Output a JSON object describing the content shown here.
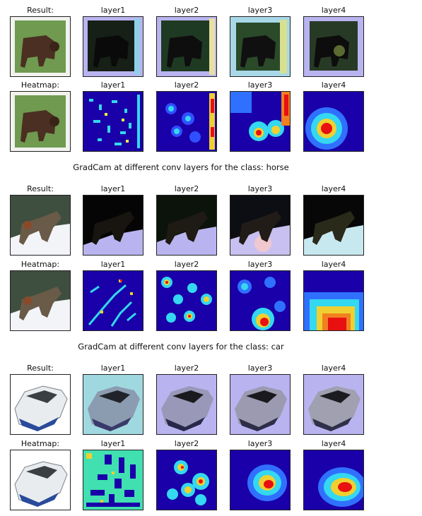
{
  "groups": [
    {
      "class_name": "horse",
      "caption": "GradCam at different conv layers for the class: horse",
      "row1_labels": [
        "Result:",
        "layer1",
        "layer2",
        "layer3",
        "layer4"
      ],
      "row2_labels": [
        "Heatmap:",
        "layer1",
        "layer2",
        "layer3",
        "layer4"
      ]
    },
    {
      "class_name": "car",
      "caption": "GradCam at different conv layers for the class: car",
      "row1_labels": [
        "Result:",
        "layer1",
        "layer2",
        "layer3",
        "layer4"
      ],
      "row2_labels": [
        "Heatmap:",
        "layer1",
        "layer2",
        "layer3",
        "layer4"
      ]
    },
    {
      "class_name": "",
      "caption": "",
      "row1_labels": [
        "Result:",
        "layer1",
        "layer2",
        "layer3",
        "layer4"
      ],
      "row2_labels": [
        "Heatmap:",
        "layer1",
        "layer2",
        "layer3",
        "layer4"
      ]
    }
  ],
  "colors": {
    "jet_background": "#1a00a8",
    "overlay_tint": "#b9b4f0",
    "grass": "#6f9a4f",
    "snow": "#f2f4f8",
    "boat_white": "#e8ecef"
  }
}
